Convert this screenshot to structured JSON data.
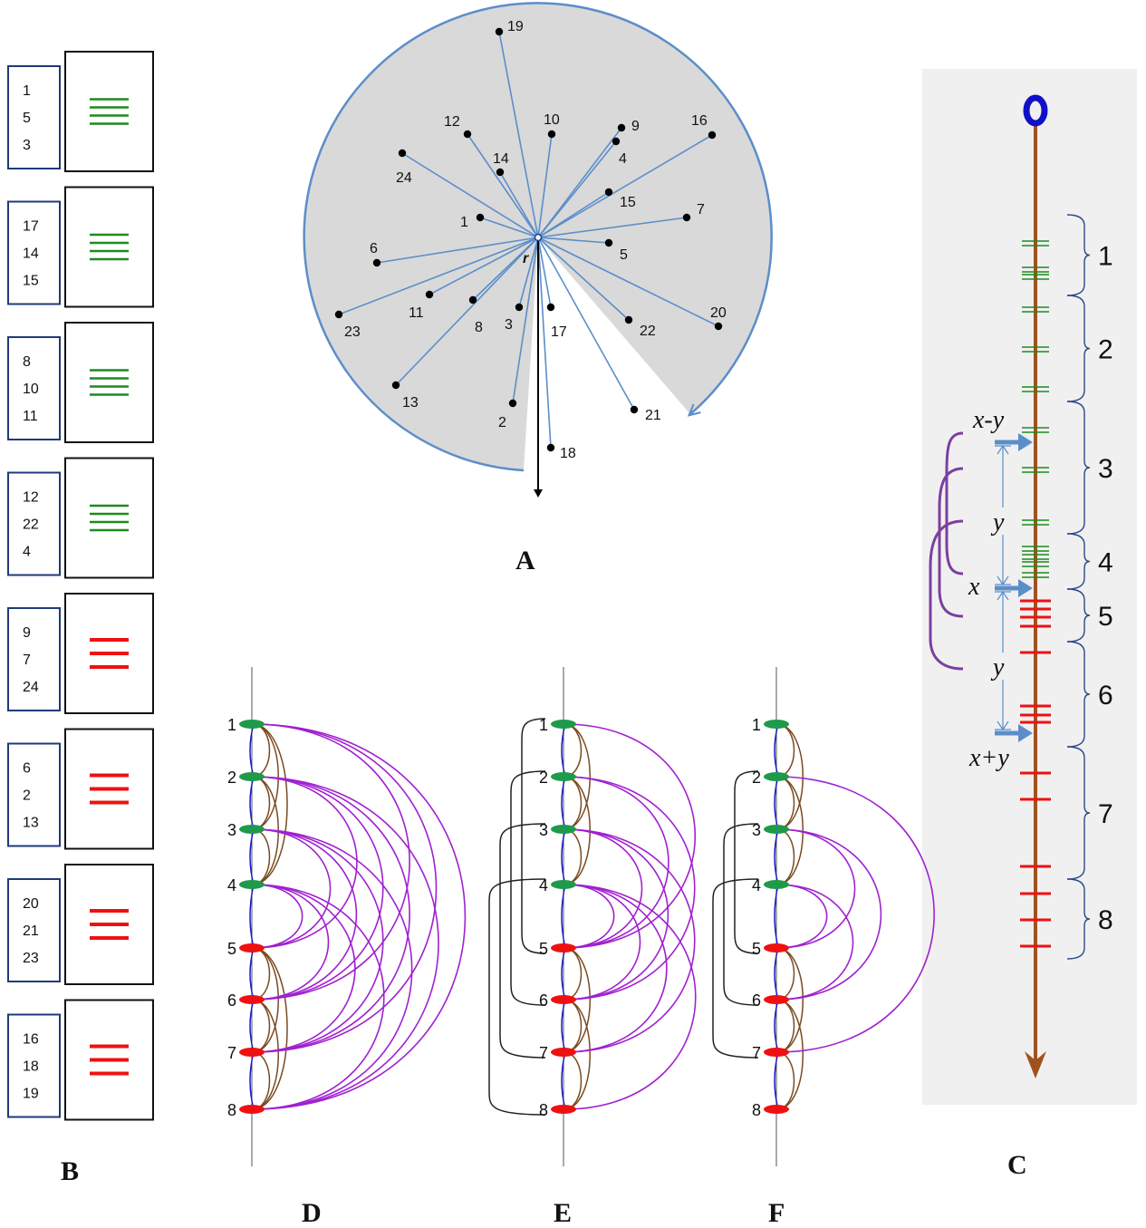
{
  "panel_labels": {
    "A": "A",
    "B": "B",
    "C": "C",
    "D": "D",
    "E": "E",
    "F": "F"
  },
  "panelA": {
    "root_label": "r",
    "points": [
      "19",
      "12",
      "10",
      "9",
      "4",
      "16",
      "14",
      "24",
      "15",
      "7",
      "1",
      "5",
      "6",
      "11",
      "8",
      "3",
      "17",
      "22",
      "20",
      "23",
      "13",
      "2",
      "18",
      "21"
    ],
    "colors": {
      "disc": "#d9d9d9",
      "line": "#5b8ec9",
      "dot": "#000000"
    }
  },
  "panelB": {
    "groups": [
      {
        "ids": [
          "1",
          "5",
          "3"
        ],
        "color": "#1e8a1e",
        "bars": 4
      },
      {
        "ids": [
          "17",
          "14",
          "15"
        ],
        "color": "#1e8a1e",
        "bars": 4
      },
      {
        "ids": [
          "8",
          "10",
          "11"
        ],
        "color": "#1e8a1e",
        "bars": 4
      },
      {
        "ids": [
          "12",
          "22",
          "4"
        ],
        "color": "#1e8a1e",
        "bars": 4
      },
      {
        "ids": [
          "9",
          "7",
          "24"
        ],
        "color": "#ee1111",
        "bars": 3
      },
      {
        "ids": [
          "6",
          "2",
          "13"
        ],
        "color": "#ee1111",
        "bars": 3
      },
      {
        "ids": [
          "20",
          "21",
          "23"
        ],
        "color": "#ee1111",
        "bars": 3
      },
      {
        "ids": [
          "16",
          "18",
          "19"
        ],
        "color": "#ee1111",
        "bars": 3
      }
    ],
    "box_border_color": "#1f3a7a"
  },
  "panelC": {
    "bracket_labels": [
      "1",
      "2",
      "3",
      "4",
      "5",
      "6",
      "7",
      "8"
    ],
    "annotations": {
      "x_minus_y": "x-y",
      "x": "x",
      "y1": "y",
      "y2": "y",
      "x_plus_y": "x+y"
    },
    "colors": {
      "axis": "#a0521e",
      "root": "#1010c8",
      "green": "#1e8a1e",
      "red": "#ee1111",
      "arrow": "#5b8ec9",
      "purple": "#7b3fa0",
      "bracket": "#2a4a8a",
      "background": "#f0f0f0"
    }
  },
  "arc_panels": {
    "node_labels": [
      "1",
      "2",
      "3",
      "4",
      "5",
      "6",
      "7",
      "8"
    ],
    "colors": {
      "green": "#1e9a4a",
      "red": "#ee1111",
      "blue": "#1a1acc",
      "brown": "#7a4a20",
      "purple": "#a020d0"
    }
  }
}
